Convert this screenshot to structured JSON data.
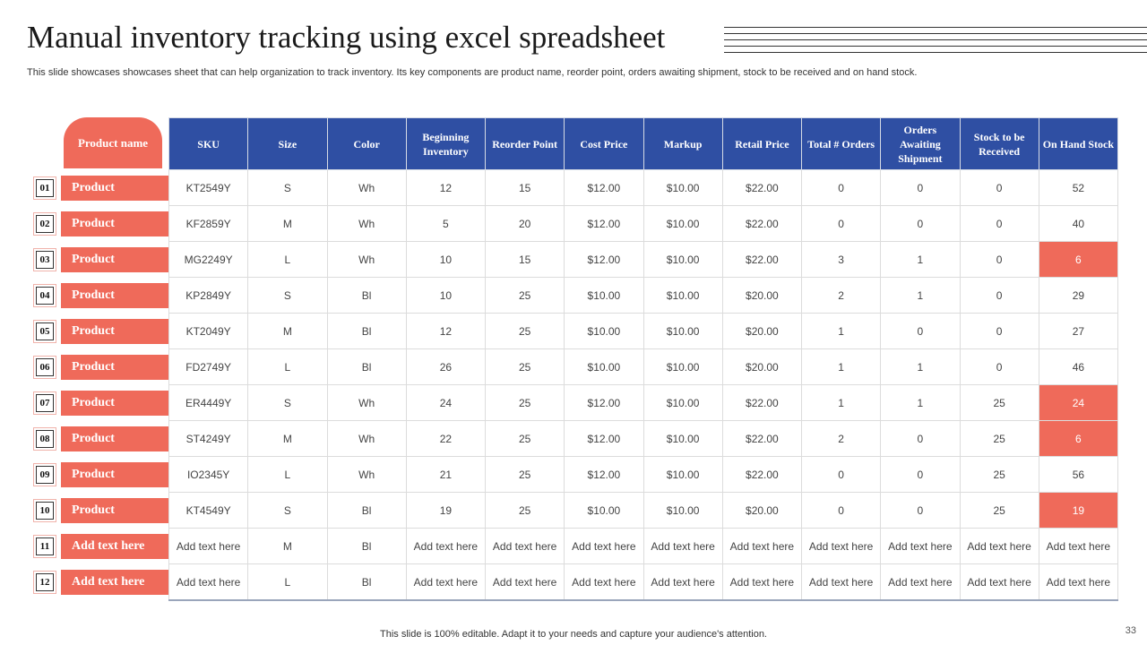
{
  "title": "Manual inventory tracking using excel spreadsheet",
  "subtitle": "This slide showcases showcases sheet that can help organization to track inventory.  Its key components are product name, reorder point, orders awaiting shipment, stock to be received and on hand stock.",
  "product_header": "Product name",
  "columns": [
    "SKU",
    "Size",
    "Color",
    "Beginning Inventory",
    "Reorder Point",
    "Cost Price",
    "Markup",
    "Retail Price",
    "Total # Orders",
    "Orders Awaiting Shipment",
    "Stock to be Received",
    "On Hand Stock"
  ],
  "rows": [
    {
      "num": "01",
      "product": "Product",
      "cells": [
        "KT2549Y",
        "S",
        "Wh",
        "12",
        "15",
        "$12.00",
        "$10.00",
        "$22.00",
        "0",
        "0",
        "0",
        "52"
      ],
      "stock_alert": false
    },
    {
      "num": "02",
      "product": "Product",
      "cells": [
        "KF2859Y",
        "M",
        "Wh",
        "5",
        "20",
        "$12.00",
        "$10.00",
        "$22.00",
        "0",
        "0",
        "0",
        "40"
      ],
      "stock_alert": false
    },
    {
      "num": "03",
      "product": "Product",
      "cells": [
        "MG2249Y",
        "L",
        "Wh",
        "10",
        "15",
        "$12.00",
        "$10.00",
        "$22.00",
        "3",
        "1",
        "0",
        "6"
      ],
      "stock_alert": true
    },
    {
      "num": "04",
      "product": "Product",
      "cells": [
        "KP2849Y",
        "S",
        "Bl",
        "10",
        "25",
        "$10.00",
        "$10.00",
        "$20.00",
        "2",
        "1",
        "0",
        "29"
      ],
      "stock_alert": false
    },
    {
      "num": "05",
      "product": "Product",
      "cells": [
        "KT2049Y",
        "M",
        "Bl",
        "12",
        "25",
        "$10.00",
        "$10.00",
        "$20.00",
        "1",
        "0",
        "0",
        "27"
      ],
      "stock_alert": false
    },
    {
      "num": "06",
      "product": "Product",
      "cells": [
        "FD2749Y",
        "L",
        "Bl",
        "26",
        "25",
        "$10.00",
        "$10.00",
        "$20.00",
        "1",
        "1",
        "0",
        "46"
      ],
      "stock_alert": false
    },
    {
      "num": "07",
      "product": "Product",
      "cells": [
        "ER4449Y",
        "S",
        "Wh",
        "24",
        "25",
        "$12.00",
        "$10.00",
        "$22.00",
        "1",
        "1",
        "25",
        "24"
      ],
      "stock_alert": true
    },
    {
      "num": "08",
      "product": "Product",
      "cells": [
        "ST4249Y",
        "M",
        "Wh",
        "22",
        "25",
        "$12.00",
        "$10.00",
        "$22.00",
        "2",
        "0",
        "25",
        "6"
      ],
      "stock_alert": true
    },
    {
      "num": "09",
      "product": "Product",
      "cells": [
        "IO2345Y",
        "L",
        "Wh",
        "21",
        "25",
        "$12.00",
        "$10.00",
        "$22.00",
        "0",
        "0",
        "25",
        "56"
      ],
      "stock_alert": false
    },
    {
      "num": "10",
      "product": "Product",
      "cells": [
        "KT4549Y",
        "S",
        "Bl",
        "19",
        "25",
        "$10.00",
        "$10.00",
        "$20.00",
        "0",
        "0",
        "25",
        "19"
      ],
      "stock_alert": true
    },
    {
      "num": "11",
      "product": "Add text here",
      "cells": [
        "Add text here",
        "M",
        "Bl",
        "Add text here",
        "Add text here",
        "Add text here",
        "Add text here",
        "Add text here",
        "Add text here",
        "Add text here",
        "Add text here",
        "Add text here"
      ],
      "stock_alert": false
    },
    {
      "num": "12",
      "product": "Add text here",
      "cells": [
        "Add text here",
        "L",
        "Bl",
        "Add text here",
        "Add text here",
        "Add text here",
        "Add text here",
        "Add text here",
        "Add text here",
        "Add text here",
        "Add text here",
        "Add text here"
      ],
      "stock_alert": false
    }
  ],
  "footer": "This slide is 100% editable. Adapt it to your needs and capture your audience's attention.",
  "page_number": "33",
  "colors": {
    "accent": "#EF6A5A",
    "header_blue": "#2F4FA3"
  }
}
